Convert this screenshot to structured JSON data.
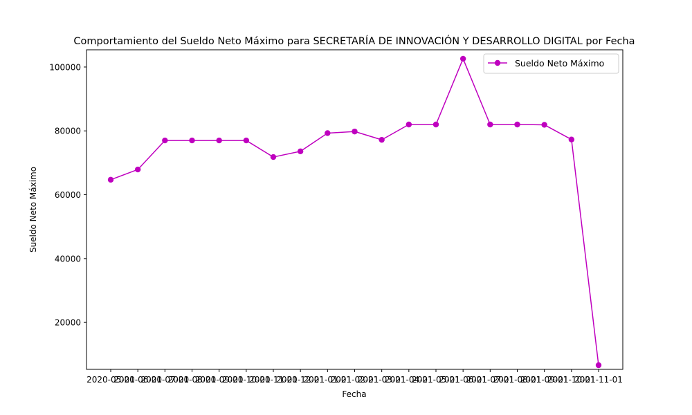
{
  "chart_data": {
    "type": "line",
    "title": "Comportamiento del Sueldo Neto Máximo para SECRETARÍA DE INNOVACIÓN Y DESARROLLO DIGITAL por Fecha",
    "xlabel": "Fecha",
    "ylabel": "Sueldo Neto Máximo",
    "ylim": [
      5300,
      105400
    ],
    "yticks": [
      20000,
      40000,
      60000,
      80000,
      100000
    ],
    "categories": [
      "2020-05-01",
      "2020-06-01",
      "2020-07-01",
      "2020-08-01",
      "2020-09-01",
      "2020-10-01",
      "2020-11-01",
      "2020-12-01",
      "2021-01-01",
      "2021-02-01",
      "2021-03-01",
      "2021-04-01",
      "2021-05-01",
      "2021-06-01",
      "2021-07-01",
      "2021-08-01",
      "2021-09-01",
      "2021-10-01",
      "2021-11-01"
    ],
    "series": [
      {
        "name": "Sueldo Neto Máximo",
        "color": "#bf00bf",
        "marker": "circle",
        "values": [
          64700,
          67900,
          77000,
          77000,
          77000,
          77000,
          71800,
          73600,
          79300,
          79800,
          77200,
          82000,
          82000,
          102600,
          82000,
          82000,
          81900,
          77300,
          6600
        ]
      }
    ],
    "grid": false,
    "legend_position": "top-right"
  }
}
